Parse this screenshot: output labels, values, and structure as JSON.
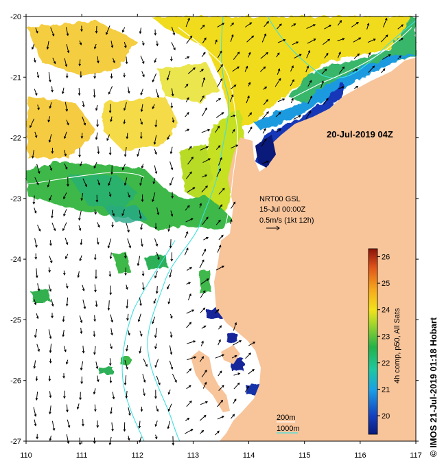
{
  "map": {
    "date_label": "20-Jul-2019 04Z",
    "x_ticks": [
      "110",
      "111",
      "112",
      "113",
      "114",
      "115",
      "116",
      "117"
    ],
    "y_ticks": [
      "-20",
      "-21",
      "-22",
      "-23",
      "-24",
      "-25",
      "-26",
      "-27"
    ],
    "current_source": "NRT00 GSL",
    "current_date": "15-Jul 00:00Z",
    "current_scale": "0.5m/s (1kt 12h)",
    "isobath_labels": [
      "200m",
      "1000m"
    ],
    "colors": {
      "land": "#f8c49a",
      "isobath_200": "#ffffff",
      "isobath_1000": "#40e0e0",
      "frame": "#000000"
    }
  },
  "colorbar": {
    "label": "4h comp, p50, All Sats",
    "ticks": [
      "20",
      "21",
      "22",
      "23",
      "24",
      "25",
      "26"
    ],
    "range": [
      19.3,
      26.3
    ]
  },
  "credit": "© IMOS 21-Jul-2019 01:18 Hobart"
}
